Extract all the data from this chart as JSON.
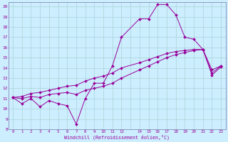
{
  "xlabel": "Windchill (Refroidissement éolien,°C)",
  "bg_color": "#cceeff",
  "line_color": "#990099",
  "grid_color": "#aad4d4",
  "spine_color": "#7777aa",
  "xlim": [
    -0.5,
    23.5
  ],
  "ylim": [
    8,
    20.4
  ],
  "xtick_labels": [
    "0",
    "1",
    "2",
    "3",
    "4",
    "5",
    "6",
    "7",
    "8",
    "9",
    "10",
    "11",
    "12",
    "",
    "14",
    "15",
    "16",
    "17",
    "18",
    "19",
    "20",
    "21",
    "22",
    "23"
  ],
  "ytick_labels": [
    "8",
    "",
    "",
    "11",
    "",
    "",
    "14",
    "",
    "",
    "17",
    "",
    "",
    "20"
  ],
  "ytick_vals": [
    8,
    9,
    10,
    11,
    12,
    13,
    14,
    15,
    16,
    17,
    18,
    19,
    20
  ],
  "series1_x": [
    0,
    1,
    2,
    3,
    4,
    5,
    6,
    7,
    8,
    9,
    10,
    11,
    12,
    14,
    15,
    16,
    17,
    18,
    19,
    20,
    21,
    22,
    23
  ],
  "series1_y": [
    11.1,
    10.5,
    11.0,
    10.2,
    10.8,
    10.5,
    10.3,
    8.5,
    11.0,
    12.5,
    12.5,
    14.2,
    17.0,
    18.8,
    18.8,
    20.2,
    20.2,
    19.2,
    17.0,
    16.8,
    15.8,
    13.5,
    14.2
  ],
  "series2_x": [
    0,
    1,
    2,
    3,
    4,
    5,
    6,
    7,
    8,
    9,
    10,
    11,
    12,
    14,
    15,
    16,
    17,
    18,
    19,
    20,
    21,
    22,
    23
  ],
  "series2_y": [
    11.1,
    11.0,
    11.2,
    11.1,
    11.4,
    11.5,
    11.6,
    11.4,
    11.8,
    12.0,
    12.2,
    12.5,
    13.0,
    13.8,
    14.2,
    14.6,
    15.0,
    15.3,
    15.5,
    15.7,
    15.8,
    13.8,
    14.2
  ],
  "series3_x": [
    0,
    1,
    2,
    3,
    4,
    5,
    6,
    7,
    8,
    9,
    10,
    11,
    12,
    14,
    15,
    16,
    17,
    18,
    19,
    20,
    21,
    22,
    23
  ],
  "series3_y": [
    11.1,
    11.2,
    11.5,
    11.6,
    11.8,
    12.0,
    12.2,
    12.3,
    12.7,
    13.0,
    13.2,
    13.5,
    14.0,
    14.5,
    14.8,
    15.1,
    15.4,
    15.6,
    15.7,
    15.8,
    15.8,
    13.3,
    14.1
  ]
}
